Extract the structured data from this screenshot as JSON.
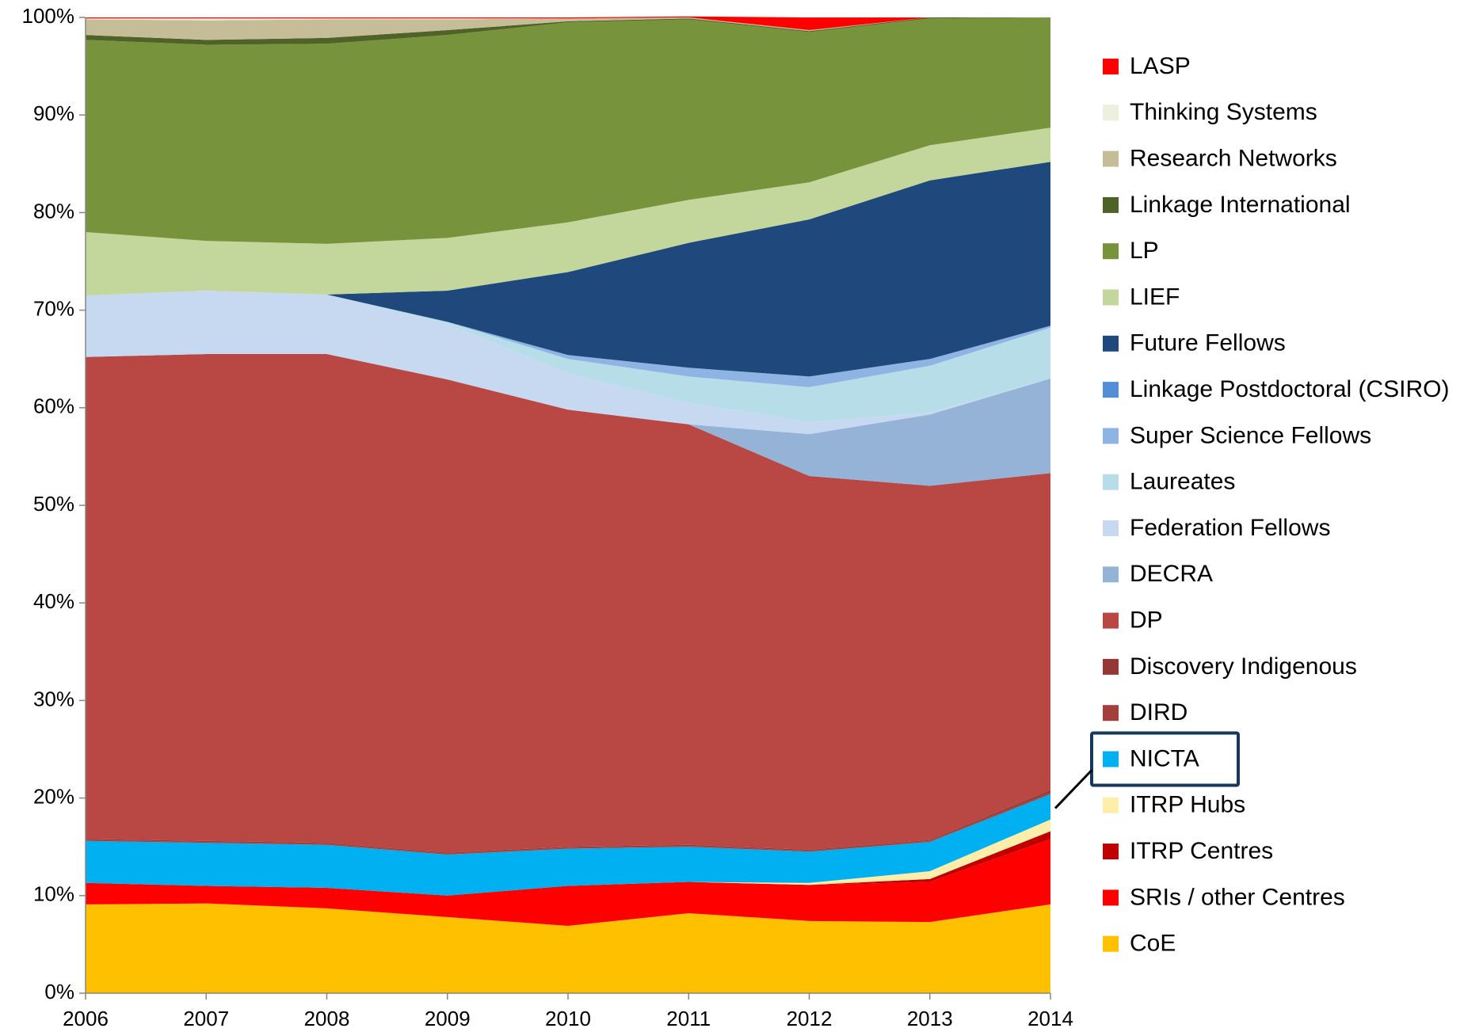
{
  "chart_data": {
    "type": "stacked-area",
    "x": [
      2006,
      2007,
      2008,
      2009,
      2010,
      2011,
      2012,
      2013,
      2014
    ],
    "xlim": [
      2006,
      2014
    ],
    "xticks": [
      2006,
      2007,
      2008,
      2009,
      2010,
      2011,
      2012,
      2013,
      2014
    ],
    "ylim": [
      0,
      100
    ],
    "yticks": [
      {
        "value": 0,
        "label": "0%"
      },
      {
        "value": 10,
        "label": "10%"
      },
      {
        "value": 20,
        "label": "20%"
      },
      {
        "value": 30,
        "label": "30%"
      },
      {
        "value": 40,
        "label": "40%"
      },
      {
        "value": 50,
        "label": "50%"
      },
      {
        "value": 60,
        "label": "60%"
      },
      {
        "value": 70,
        "label": "70%"
      },
      {
        "value": 80,
        "label": "80%"
      },
      {
        "value": 90,
        "label": "90%"
      },
      {
        "value": 100,
        "label": "100%"
      }
    ],
    "highlight": "NICTA",
    "series": [
      {
        "name": "CoE",
        "color": "#ffc000",
        "values": [
          9.1,
          9.2,
          8.7,
          7.8,
          6.9,
          8.2,
          7.4,
          7.3,
          9.1
        ]
      },
      {
        "name": "SRIs / other Centres",
        "color": "#ff0000",
        "values": [
          2.2,
          1.8,
          2.1,
          2.2,
          4.1,
          3.2,
          3.7,
          4.1,
          6.7
        ]
      },
      {
        "name": "ITRP Centres",
        "color": "#c00000",
        "values": [
          0,
          0,
          0,
          0,
          0,
          0,
          0,
          0.3,
          0.8
        ]
      },
      {
        "name": "ITRP Hubs",
        "color": "#ffeeaa",
        "values": [
          0,
          0,
          0,
          0,
          0,
          0,
          0.2,
          0.8,
          1.2
        ]
      },
      {
        "name": "NICTA",
        "color": "#00b0f0",
        "values": [
          4.3,
          4.4,
          4.4,
          4.2,
          3.8,
          3.6,
          3.2,
          3.0,
          2.6
        ]
      },
      {
        "name": "DIRD",
        "color": "#a3403c",
        "values": [
          0.1,
          0.1,
          0.1,
          0.1,
          0.1,
          0.1,
          0.1,
          0.1,
          0.2
        ]
      },
      {
        "name": "Discovery Indigenous",
        "color": "#953735",
        "values": [
          0.1,
          0.1,
          0.1,
          0.1,
          0.1,
          0.1,
          0.1,
          0.1,
          0.2
        ]
      },
      {
        "name": "DP",
        "color": "#b94743",
        "values": [
          49.4,
          49.9,
          50.1,
          48.5,
          44.8,
          43.1,
          38.3,
          36.3,
          32.5
        ]
      },
      {
        "name": "DECRA",
        "color": "#95b3d7",
        "values": [
          0,
          0,
          0,
          0,
          0,
          0,
          4.3,
          7.3,
          9.7
        ]
      },
      {
        "name": "Federation Fellows",
        "color": "#c6d9f1",
        "values": [
          6.3,
          6.5,
          6.1,
          5.7,
          3.7,
          2.2,
          1.2,
          0.2,
          0
        ]
      },
      {
        "name": "Laureates",
        "color": "#b7dee8",
        "values": [
          0,
          0,
          0,
          0.2,
          1.5,
          2.7,
          3.6,
          4.8,
          5.2
        ]
      },
      {
        "name": "Super Science Fellows",
        "color": "#8eb4e3",
        "values": [
          0,
          0,
          0,
          0,
          0.4,
          0.9,
          1.1,
          0.7,
          0.2
        ]
      },
      {
        "name": "Linkage Postdoctoral (CSIRO)",
        "color": "#558ed5",
        "values": [
          0,
          0,
          0,
          0,
          0,
          0,
          0,
          0,
          0
        ]
      },
      {
        "name": "Future Fellows",
        "color": "#1f497d",
        "values": [
          0,
          0,
          0,
          3.2,
          8.5,
          12.8,
          16.1,
          18.3,
          16.8
        ]
      },
      {
        "name": "LIEF",
        "color": "#c3d69b",
        "values": [
          6.5,
          5.1,
          5.2,
          5.4,
          5.1,
          4.4,
          3.8,
          3.6,
          3.5
        ]
      },
      {
        "name": "LP",
        "color": "#77933c",
        "values": [
          19.7,
          20.1,
          20.5,
          20.8,
          20.5,
          18.5,
          15.4,
          13.0,
          11.3
        ]
      },
      {
        "name": "Linkage International",
        "color": "#4f6228",
        "values": [
          0.5,
          0.5,
          0.6,
          0.5,
          0.1,
          0.1,
          0.1,
          0.1,
          0
        ]
      },
      {
        "name": "Research Networks",
        "color": "#c4bd97",
        "values": [
          1.6,
          2.0,
          1.9,
          1.1,
          0.3,
          0.1,
          0.1,
          0,
          0
        ]
      },
      {
        "name": "Thinking Systems",
        "color": "#ebf1de",
        "values": [
          0.1,
          0.2,
          0.1,
          0.1,
          0,
          0,
          0,
          0,
          0
        ]
      },
      {
        "name": "LASP",
        "color": "#ff0000",
        "values": [
          0.1,
          0.1,
          0.1,
          0.1,
          0.1,
          0.1,
          1.3,
          0,
          0
        ]
      }
    ]
  }
}
